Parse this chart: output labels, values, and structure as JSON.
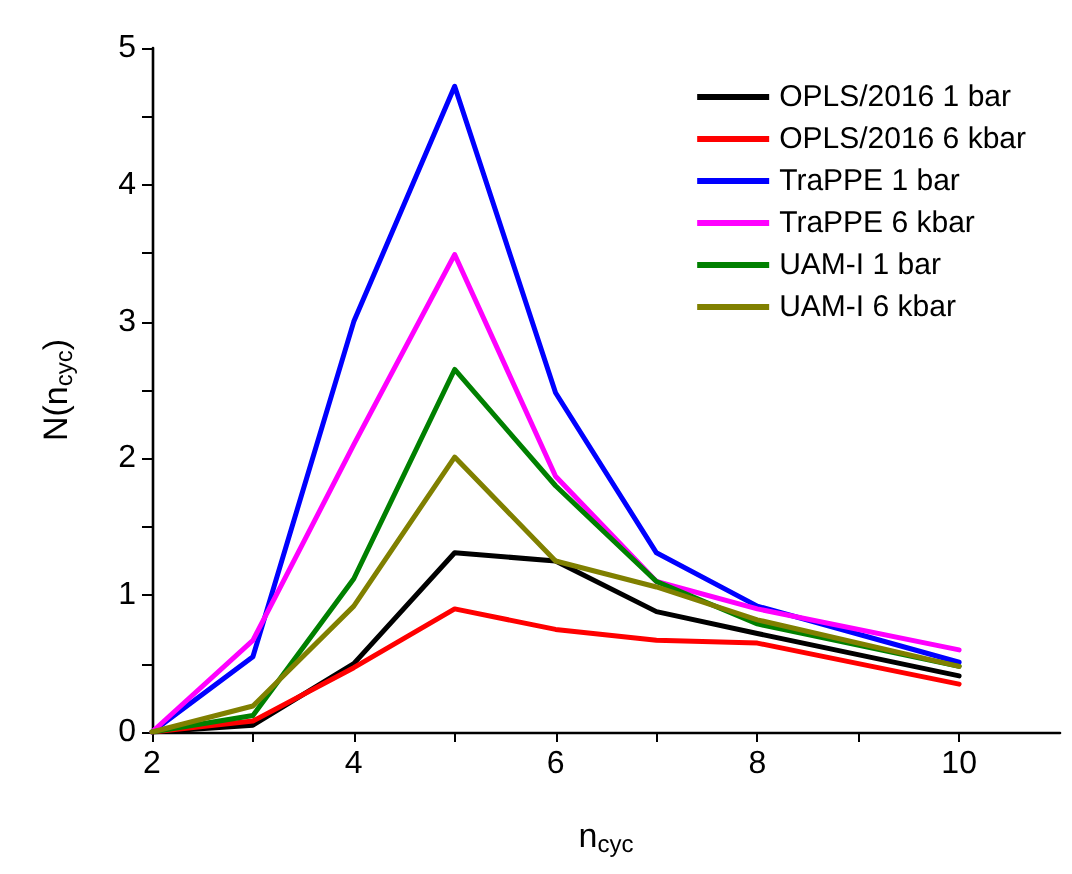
{
  "chart_data": {
    "type": "line",
    "xlabel": "n$_{cyc}$",
    "ylabel": "N(n$_{cyc}$)",
    "x": [
      2,
      3,
      4,
      5,
      6,
      7,
      8,
      10
    ],
    "series": [
      {
        "name": "OPLS/2016 1 bar",
        "color": "#000000",
        "values": [
          0,
          0.05,
          0.5,
          1.31,
          1.25,
          0.88,
          0.72,
          0.41
        ]
      },
      {
        "name": "OPLS/2016 6 kbar",
        "color": "#ff0000",
        "values": [
          0,
          0.08,
          0.47,
          0.9,
          0.75,
          0.67,
          0.65,
          0.35
        ]
      },
      {
        "name": "TraPPE 1 bar",
        "color": "#0000ff",
        "values": [
          0,
          0.55,
          3.0,
          4.72,
          2.48,
          1.31,
          0.92,
          0.51
        ]
      },
      {
        "name": "TraPPE 6 kbar",
        "color": "#ff00ff",
        "values": [
          0,
          0.67,
          2.1,
          3.49,
          1.87,
          1.1,
          0.9,
          0.6
        ]
      },
      {
        "name": "UAM-I 1 bar",
        "color": "#008000",
        "values": [
          0,
          0.12,
          1.12,
          2.65,
          1.8,
          1.1,
          0.79,
          0.48
        ]
      },
      {
        "name": "UAM-I 6 kbar",
        "color": "#808000",
        "values": [
          0,
          0.19,
          0.92,
          2.01,
          1.25,
          1.06,
          0.82,
          0.48
        ]
      }
    ],
    "xlim": [
      2,
      11
    ],
    "xticks": [
      2,
      {
        "value": 3,
        "label": null
      },
      4,
      {
        "value": 5,
        "label": null
      },
      6,
      {
        "value": 7,
        "label": null
      },
      8,
      {
        "value": 9,
        "label": null
      },
      10
    ],
    "ylim": [
      0,
      5
    ],
    "yticks": [
      0,
      {
        "value": 0.5,
        "label": null
      },
      1,
      {
        "value": 1.5,
        "label": null
      },
      2,
      {
        "value": 2.5,
        "label": null
      },
      3,
      {
        "value": 3.5,
        "label": null
      },
      4,
      {
        "value": 4.5,
        "label": null
      },
      5
    ],
    "grid": false,
    "legend": "top right",
    "marker": "none",
    "line_style": "solid"
  }
}
